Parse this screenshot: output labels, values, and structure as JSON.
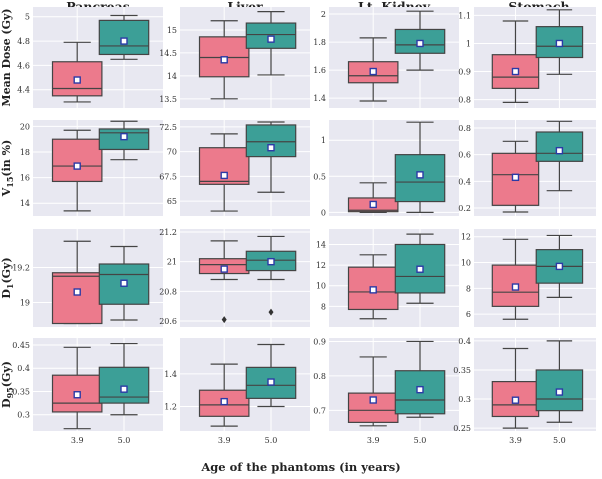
{
  "chart_data": {
    "type": "box",
    "xlabel": "Age of the phantoms (in years)",
    "categories": [
      "3.9",
      "5.0"
    ],
    "colors": {
      "3.9": "#ec7a8c",
      "5.0": "#3c9f97",
      "background": "#e8e8f1",
      "mean_marker": "#2b3aa6"
    },
    "columns": [
      "Pancreas",
      "Liver",
      "Lt. Kidney",
      "Stomach"
    ],
    "rows": [
      {
        "label_main": "Mean Dose (Gy)",
        "label_sub": "",
        "panels": [
          {
            "organ": "Pancreas",
            "ylim": [
              4.25,
              5.08
            ],
            "ticks": [
              4.4,
              4.6,
              4.8,
              5.0
            ],
            "boxes": [
              {
                "category": "3.9",
                "min": 4.3,
                "q1": 4.35,
                "median": 4.41,
                "q3": 4.63,
                "max": 4.79,
                "mean": 4.48,
                "outliers": []
              },
              {
                "category": "5.0",
                "min": 4.65,
                "q1": 4.69,
                "median": 4.76,
                "q3": 4.97,
                "max": 5.01,
                "mean": 4.8,
                "outliers": []
              }
            ]
          },
          {
            "organ": "Liver",
            "ylim": [
              13.3,
              15.5
            ],
            "ticks": [
              13.5,
              14.0,
              14.5,
              15.0
            ],
            "boxes": [
              {
                "category": "3.9",
                "min": 13.5,
                "q1": 13.98,
                "median": 14.4,
                "q3": 14.85,
                "max": 15.2,
                "mean": 14.35,
                "outliers": []
              },
              {
                "category": "5.0",
                "min": 14.02,
                "q1": 14.6,
                "median": 14.9,
                "q3": 15.15,
                "max": 15.4,
                "mean": 14.8,
                "outliers": []
              }
            ]
          },
          {
            "organ": "Lt. Kidney",
            "ylim": [
              1.33,
              2.05
            ],
            "ticks": [
              1.4,
              1.6,
              1.8,
              2.0
            ],
            "boxes": [
              {
                "category": "3.9",
                "min": 1.38,
                "q1": 1.51,
                "median": 1.56,
                "q3": 1.66,
                "max": 1.83,
                "mean": 1.59,
                "outliers": []
              },
              {
                "category": "5.0",
                "min": 1.6,
                "q1": 1.72,
                "median": 1.78,
                "q3": 1.89,
                "max": 2.02,
                "mean": 1.79,
                "outliers": []
              }
            ]
          },
          {
            "organ": "Stomach",
            "ylim": [
              0.77,
              1.13
            ],
            "ticks": [
              0.8,
              0.9,
              1.0,
              1.1
            ],
            "boxes": [
              {
                "category": "3.9",
                "min": 0.79,
                "q1": 0.84,
                "median": 0.88,
                "q3": 0.96,
                "max": 1.08,
                "mean": 0.9,
                "outliers": []
              },
              {
                "category": "5.0",
                "min": 0.89,
                "q1": 0.95,
                "median": 0.99,
                "q3": 1.06,
                "max": 1.12,
                "mean": 1.0,
                "outliers": []
              }
            ]
          }
        ]
      },
      {
        "label_main": "V",
        "label_sub": "15",
        "label_suffix": "(in %)",
        "panels": [
          {
            "organ": "Pancreas",
            "ylim": [
              13.0,
              20.5
            ],
            "ticks": [
              14,
              16,
              18,
              20
            ],
            "boxes": [
              {
                "category": "3.9",
                "min": 13.4,
                "q1": 15.7,
                "median": 16.9,
                "q3": 19.0,
                "max": 19.7,
                "mean": 16.9,
                "outliers": []
              },
              {
                "category": "5.0",
                "min": 17.4,
                "q1": 18.2,
                "median": 19.5,
                "q3": 19.8,
                "max": 20.4,
                "mean": 19.2,
                "outliers": []
              }
            ]
          },
          {
            "organ": "Liver",
            "ylim": [
              63.5,
              73.2
            ],
            "ticks": [
              65.0,
              67.5,
              70.0,
              72.5
            ],
            "boxes": [
              {
                "category": "3.9",
                "min": 64.0,
                "q1": 66.7,
                "median": 67.0,
                "q3": 70.4,
                "max": 71.8,
                "mean": 67.6,
                "outliers": []
              },
              {
                "category": "5.0",
                "min": 65.9,
                "q1": 69.5,
                "median": 71.0,
                "q3": 72.7,
                "max": 73.0,
                "mean": 70.4,
                "outliers": []
              }
            ]
          },
          {
            "organ": "Lt. Kidney",
            "ylim": [
              -0.05,
              1.28
            ],
            "ticks": [
              0.0,
              0.5,
              1.0
            ],
            "boxes": [
              {
                "category": "3.9",
                "min": 0.0,
                "q1": 0.01,
                "median": 0.03,
                "q3": 0.2,
                "max": 0.41,
                "mean": 0.11,
                "outliers": []
              },
              {
                "category": "5.0",
                "min": 0.0,
                "q1": 0.15,
                "median": 0.42,
                "q3": 0.8,
                "max": 1.25,
                "mean": 0.52,
                "outliers": []
              }
            ]
          },
          {
            "organ": "Stomach",
            "ylim": [
              0.14,
              0.86
            ],
            "ticks": [
              0.2,
              0.4,
              0.6,
              0.8
            ],
            "boxes": [
              {
                "category": "3.9",
                "min": 0.17,
                "q1": 0.22,
                "median": 0.45,
                "q3": 0.61,
                "max": 0.7,
                "mean": 0.43,
                "outliers": []
              },
              {
                "category": "5.0",
                "min": 0.33,
                "q1": 0.55,
                "median": 0.61,
                "q3": 0.77,
                "max": 0.85,
                "mean": 0.63,
                "outliers": []
              }
            ]
          }
        ]
      },
      {
        "label_main": "D",
        "label_sub": "1",
        "label_suffix": "(Gy)",
        "panels": [
          {
            "organ": "Pancreas",
            "ylim": [
              18.86,
              19.42
            ],
            "ticks": [
              19.0,
              19.2
            ],
            "boxes": [
              {
                "category": "3.9",
                "min": 18.88,
                "q1": 18.88,
                "median": 19.15,
                "q3": 19.17,
                "max": 19.35,
                "mean": 19.06,
                "outliers": []
              },
              {
                "category": "5.0",
                "min": 18.9,
                "q1": 18.99,
                "median": 19.16,
                "q3": 19.22,
                "max": 19.32,
                "mean": 19.11,
                "outliers": []
              }
            ]
          },
          {
            "organ": "Liver",
            "ylim": [
              20.56,
              21.22
            ],
            "ticks": [
              20.6,
              20.8,
              21.0,
              21.2
            ],
            "boxes": [
              {
                "category": "3.9",
                "min": 20.88,
                "q1": 20.92,
                "median": 20.98,
                "q3": 21.02,
                "max": 21.14,
                "mean": 20.95,
                "outliers": [
                  20.61
                ]
              },
              {
                "category": "5.0",
                "min": 20.88,
                "q1": 20.94,
                "median": 21.01,
                "q3": 21.07,
                "max": 21.17,
                "mean": 21.0,
                "outliers": [
                  20.66
                ]
              }
            ]
          },
          {
            "organ": "Lt. Kidney",
            "ylim": [
              6.0,
              15.5
            ],
            "ticks": [
              8,
              10,
              12,
              14
            ],
            "boxes": [
              {
                "category": "3.9",
                "min": 6.8,
                "q1": 7.7,
                "median": 9.4,
                "q3": 11.8,
                "max": 13.0,
                "mean": 9.6,
                "outliers": []
              },
              {
                "category": "5.0",
                "min": 8.3,
                "q1": 9.3,
                "median": 10.9,
                "q3": 14.0,
                "max": 15.0,
                "mean": 11.6,
                "outliers": []
              }
            ]
          },
          {
            "organ": "Stomach",
            "ylim": [
              5.0,
              12.6
            ],
            "ticks": [
              6,
              8,
              10,
              12
            ],
            "boxes": [
              {
                "category": "3.9",
                "min": 5.6,
                "q1": 6.6,
                "median": 7.7,
                "q3": 9.8,
                "max": 11.8,
                "mean": 8.1,
                "outliers": []
              },
              {
                "category": "5.0",
                "min": 7.3,
                "q1": 8.4,
                "median": 9.7,
                "q3": 11.0,
                "max": 12.1,
                "mean": 9.7,
                "outliers": []
              }
            ]
          }
        ]
      },
      {
        "label_main": "D",
        "label_sub": "95",
        "label_suffix": "(Gy)",
        "panels": [
          {
            "organ": "Pancreas",
            "ylim": [
              0.265,
              0.465
            ],
            "ticks": [
              0.3,
              0.35,
              0.4,
              0.45
            ],
            "boxes": [
              {
                "category": "3.9",
                "min": 0.27,
                "q1": 0.306,
                "median": 0.325,
                "q3": 0.385,
                "max": 0.445,
                "mean": 0.343,
                "outliers": []
              },
              {
                "category": "5.0",
                "min": 0.3,
                "q1": 0.325,
                "median": 0.338,
                "q3": 0.402,
                "max": 0.453,
                "mean": 0.355,
                "outliers": []
              }
            ]
          },
          {
            "organ": "Liver",
            "ylim": [
              1.05,
              1.62
            ],
            "ticks": [
              1.2,
              1.4
            ],
            "boxes": [
              {
                "category": "3.9",
                "min": 1.08,
                "q1": 1.14,
                "median": 1.21,
                "q3": 1.3,
                "max": 1.46,
                "mean": 1.23,
                "outliers": []
              },
              {
                "category": "5.0",
                "min": 1.2,
                "q1": 1.25,
                "median": 1.33,
                "q3": 1.44,
                "max": 1.58,
                "mean": 1.35,
                "outliers": []
              }
            ]
          },
          {
            "organ": "Lt. Kidney",
            "ylim": [
              0.64,
              0.91
            ],
            "ticks": [
              0.7,
              0.8,
              0.9
            ],
            "boxes": [
              {
                "category": "3.9",
                "min": 0.655,
                "q1": 0.665,
                "median": 0.7,
                "q3": 0.75,
                "max": 0.855,
                "mean": 0.73,
                "outliers": []
              },
              {
                "category": "5.0",
                "min": 0.68,
                "q1": 0.69,
                "median": 0.73,
                "q3": 0.815,
                "max": 0.9,
                "mean": 0.76,
                "outliers": []
              }
            ]
          },
          {
            "organ": "Stomach",
            "ylim": [
              0.245,
              0.405
            ],
            "ticks": [
              0.25,
              0.3,
              0.35,
              0.4
            ],
            "boxes": [
              {
                "category": "3.9",
                "min": 0.25,
                "q1": 0.27,
                "median": 0.29,
                "q3": 0.33,
                "max": 0.387,
                "mean": 0.298,
                "outliers": []
              },
              {
                "category": "5.0",
                "min": 0.26,
                "q1": 0.28,
                "median": 0.3,
                "q3": 0.35,
                "max": 0.4,
                "mean": 0.312,
                "outliers": []
              }
            ]
          }
        ]
      }
    ]
  }
}
